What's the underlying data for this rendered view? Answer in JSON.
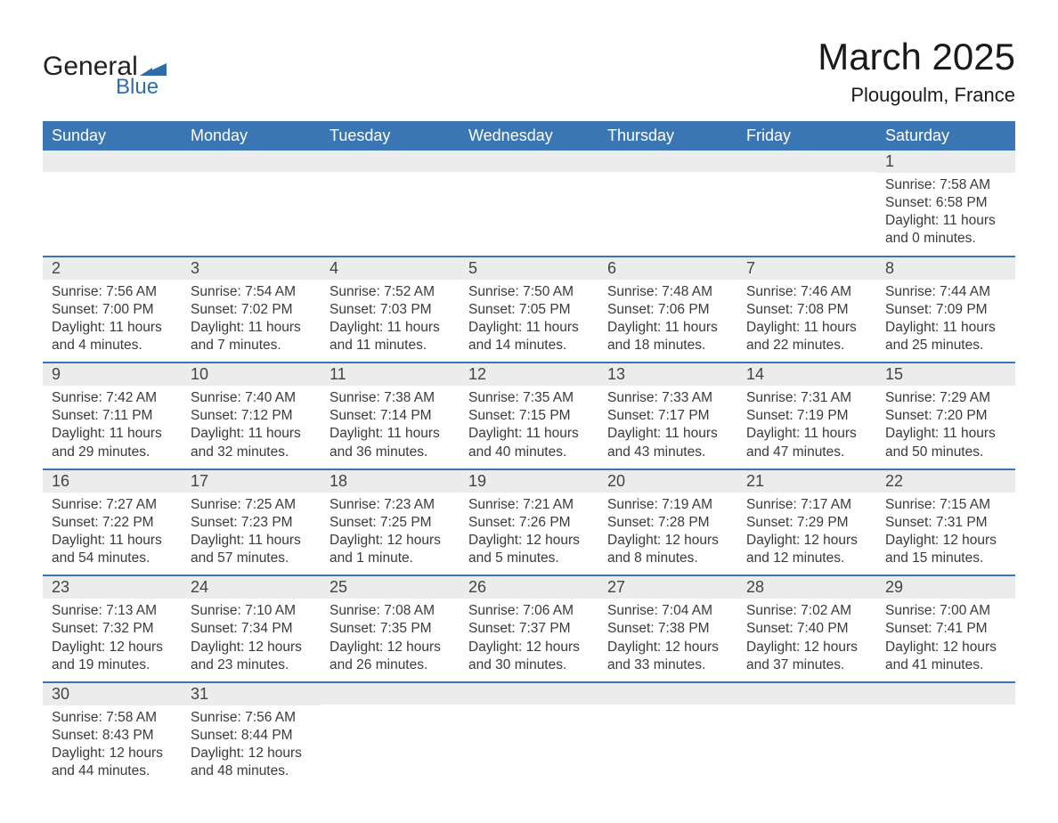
{
  "brand": {
    "word1": "General",
    "word2": "Blue",
    "tri_color": "#2f6ca8"
  },
  "title": {
    "month": "March 2025",
    "location": "Plougoulm, France"
  },
  "colors": {
    "header_bg": "#3a76b3",
    "header_fg": "#ffffff",
    "row_divider": "#3a76b3",
    "daynum_bg": "#ececec",
    "text": "#3a3a3a"
  },
  "weekdays": [
    "Sunday",
    "Monday",
    "Tuesday",
    "Wednesday",
    "Thursday",
    "Friday",
    "Saturday"
  ],
  "weeks": [
    [
      null,
      null,
      null,
      null,
      null,
      null,
      {
        "n": "1",
        "sr": "7:58 AM",
        "ss": "6:58 PM",
        "dl": "11 hours and 0 minutes."
      }
    ],
    [
      {
        "n": "2",
        "sr": "7:56 AM",
        "ss": "7:00 PM",
        "dl": "11 hours and 4 minutes."
      },
      {
        "n": "3",
        "sr": "7:54 AM",
        "ss": "7:02 PM",
        "dl": "11 hours and 7 minutes."
      },
      {
        "n": "4",
        "sr": "7:52 AM",
        "ss": "7:03 PM",
        "dl": "11 hours and 11 minutes."
      },
      {
        "n": "5",
        "sr": "7:50 AM",
        "ss": "7:05 PM",
        "dl": "11 hours and 14 minutes."
      },
      {
        "n": "6",
        "sr": "7:48 AM",
        "ss": "7:06 PM",
        "dl": "11 hours and 18 minutes."
      },
      {
        "n": "7",
        "sr": "7:46 AM",
        "ss": "7:08 PM",
        "dl": "11 hours and 22 minutes."
      },
      {
        "n": "8",
        "sr": "7:44 AM",
        "ss": "7:09 PM",
        "dl": "11 hours and 25 minutes."
      }
    ],
    [
      {
        "n": "9",
        "sr": "7:42 AM",
        "ss": "7:11 PM",
        "dl": "11 hours and 29 minutes."
      },
      {
        "n": "10",
        "sr": "7:40 AM",
        "ss": "7:12 PM",
        "dl": "11 hours and 32 minutes."
      },
      {
        "n": "11",
        "sr": "7:38 AM",
        "ss": "7:14 PM",
        "dl": "11 hours and 36 minutes."
      },
      {
        "n": "12",
        "sr": "7:35 AM",
        "ss": "7:15 PM",
        "dl": "11 hours and 40 minutes."
      },
      {
        "n": "13",
        "sr": "7:33 AM",
        "ss": "7:17 PM",
        "dl": "11 hours and 43 minutes."
      },
      {
        "n": "14",
        "sr": "7:31 AM",
        "ss": "7:19 PM",
        "dl": "11 hours and 47 minutes."
      },
      {
        "n": "15",
        "sr": "7:29 AM",
        "ss": "7:20 PM",
        "dl": "11 hours and 50 minutes."
      }
    ],
    [
      {
        "n": "16",
        "sr": "7:27 AM",
        "ss": "7:22 PM",
        "dl": "11 hours and 54 minutes."
      },
      {
        "n": "17",
        "sr": "7:25 AM",
        "ss": "7:23 PM",
        "dl": "11 hours and 57 minutes."
      },
      {
        "n": "18",
        "sr": "7:23 AM",
        "ss": "7:25 PM",
        "dl": "12 hours and 1 minute."
      },
      {
        "n": "19",
        "sr": "7:21 AM",
        "ss": "7:26 PM",
        "dl": "12 hours and 5 minutes."
      },
      {
        "n": "20",
        "sr": "7:19 AM",
        "ss": "7:28 PM",
        "dl": "12 hours and 8 minutes."
      },
      {
        "n": "21",
        "sr": "7:17 AM",
        "ss": "7:29 PM",
        "dl": "12 hours and 12 minutes."
      },
      {
        "n": "22",
        "sr": "7:15 AM",
        "ss": "7:31 PM",
        "dl": "12 hours and 15 minutes."
      }
    ],
    [
      {
        "n": "23",
        "sr": "7:13 AM",
        "ss": "7:32 PM",
        "dl": "12 hours and 19 minutes."
      },
      {
        "n": "24",
        "sr": "7:10 AM",
        "ss": "7:34 PM",
        "dl": "12 hours and 23 minutes."
      },
      {
        "n": "25",
        "sr": "7:08 AM",
        "ss": "7:35 PM",
        "dl": "12 hours and 26 minutes."
      },
      {
        "n": "26",
        "sr": "7:06 AM",
        "ss": "7:37 PM",
        "dl": "12 hours and 30 minutes."
      },
      {
        "n": "27",
        "sr": "7:04 AM",
        "ss": "7:38 PM",
        "dl": "12 hours and 33 minutes."
      },
      {
        "n": "28",
        "sr": "7:02 AM",
        "ss": "7:40 PM",
        "dl": "12 hours and 37 minutes."
      },
      {
        "n": "29",
        "sr": "7:00 AM",
        "ss": "7:41 PM",
        "dl": "12 hours and 41 minutes."
      }
    ],
    [
      {
        "n": "30",
        "sr": "7:58 AM",
        "ss": "8:43 PM",
        "dl": "12 hours and 44 minutes."
      },
      {
        "n": "31",
        "sr": "7:56 AM",
        "ss": "8:44 PM",
        "dl": "12 hours and 48 minutes."
      },
      null,
      null,
      null,
      null,
      null
    ]
  ],
  "labels": {
    "sunrise": "Sunrise: ",
    "sunset": "Sunset: ",
    "daylight": "Daylight: "
  }
}
